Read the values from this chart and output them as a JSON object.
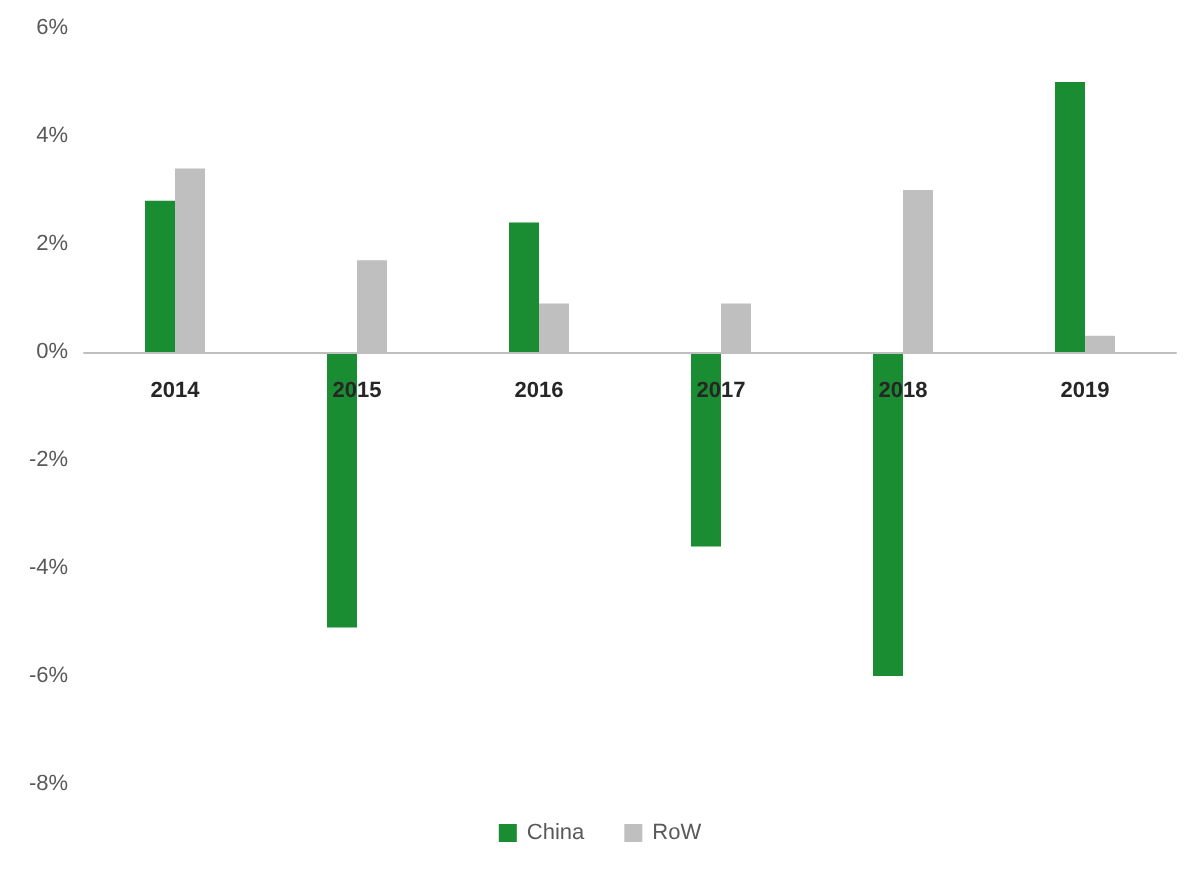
{
  "chart_data": {
    "type": "bar",
    "categories": [
      "2014",
      "2015",
      "2016",
      "2017",
      "2018",
      "2019"
    ],
    "series": [
      {
        "name": "China",
        "color": "#1a8c32",
        "values": [
          2.8,
          -5.1,
          2.4,
          -3.6,
          -6.0,
          5.0
        ]
      },
      {
        "name": "RoW",
        "color": "#bfbfbf",
        "values": [
          3.4,
          1.7,
          0.9,
          0.9,
          3.0,
          0.3
        ]
      }
    ],
    "ylim": [
      -8,
      6
    ],
    "yticks": [
      {
        "value": -8,
        "label": "-8%"
      },
      {
        "value": -6,
        "label": "-6%"
      },
      {
        "value": -4,
        "label": "-4%"
      },
      {
        "value": -2,
        "label": "-2%"
      },
      {
        "value": 0,
        "label": "0%"
      },
      {
        "value": 2,
        "label": "2%"
      },
      {
        "value": 4,
        "label": "4%"
      },
      {
        "value": 6,
        "label": "6%"
      }
    ],
    "grid": false,
    "legend": "bottom"
  }
}
